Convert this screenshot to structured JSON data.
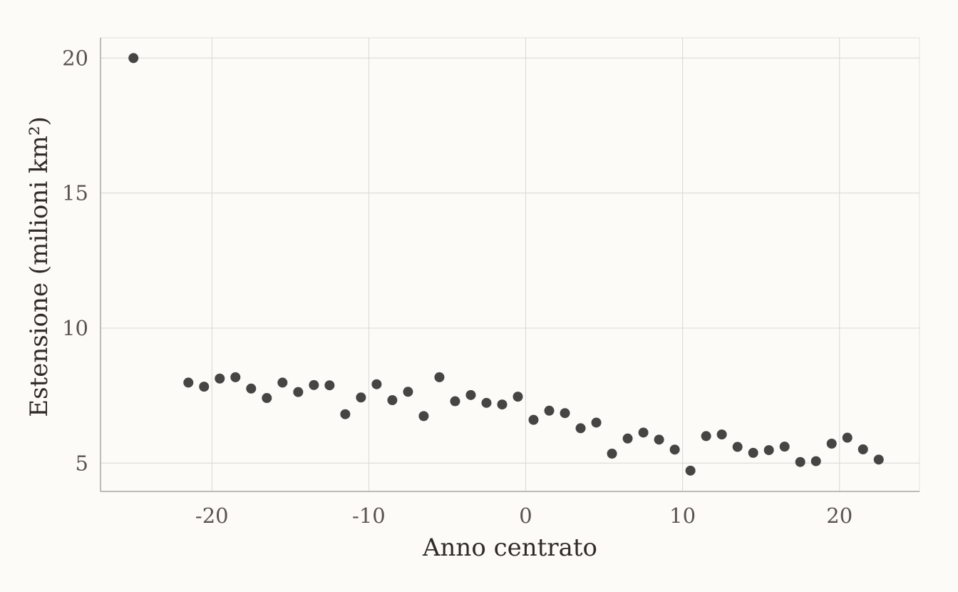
{
  "chart_data": {
    "type": "scatter",
    "title": "",
    "xlabel": "Anno centrato",
    "ylabel": "Estensione (milioni km²)",
    "xlim": [
      -27.1,
      25.1
    ],
    "ylim": [
      3.95,
      20.75
    ],
    "x_ticks": [
      -20,
      -10,
      0,
      10,
      20
    ],
    "x_tick_labels": [
      "-20",
      "-10",
      "0",
      "10",
      "20"
    ],
    "y_ticks": [
      5,
      10,
      15,
      20
    ],
    "y_tick_labels": [
      "5",
      "10",
      "15",
      "20"
    ],
    "grid": true,
    "legend": "none",
    "point_color": "#474544",
    "grid_color": "#d9d8d4",
    "background": "#fcfbf7",
    "points": [
      {
        "x": -25,
        "y": 20.0
      },
      {
        "x": -21.5,
        "y": 7.98
      },
      {
        "x": -20.5,
        "y": 7.83
      },
      {
        "x": -19.5,
        "y": 8.13
      },
      {
        "x": -18.5,
        "y": 8.18
      },
      {
        "x": -17.5,
        "y": 7.76
      },
      {
        "x": -16.5,
        "y": 7.41
      },
      {
        "x": -15.5,
        "y": 7.98
      },
      {
        "x": -14.5,
        "y": 7.63
      },
      {
        "x": -13.5,
        "y": 7.89
      },
      {
        "x": -12.5,
        "y": 7.88
      },
      {
        "x": -11.5,
        "y": 6.81
      },
      {
        "x": -10.5,
        "y": 7.43
      },
      {
        "x": -9.5,
        "y": 7.92
      },
      {
        "x": -8.5,
        "y": 7.33
      },
      {
        "x": -7.5,
        "y": 7.64
      },
      {
        "x": -6.5,
        "y": 6.74
      },
      {
        "x": -5.5,
        "y": 8.18
      },
      {
        "x": -4.5,
        "y": 7.29
      },
      {
        "x": -3.5,
        "y": 7.52
      },
      {
        "x": -2.5,
        "y": 7.23
      },
      {
        "x": -1.5,
        "y": 7.17
      },
      {
        "x": -0.5,
        "y": 7.46
      },
      {
        "x": 0.5,
        "y": 6.6
      },
      {
        "x": 1.5,
        "y": 6.94
      },
      {
        "x": 2.5,
        "y": 6.85
      },
      {
        "x": 3.5,
        "y": 6.29
      },
      {
        "x": 4.5,
        "y": 6.5
      },
      {
        "x": 5.5,
        "y": 5.35
      },
      {
        "x": 6.5,
        "y": 5.91
      },
      {
        "x": 7.5,
        "y": 6.13
      },
      {
        "x": 8.5,
        "y": 5.87
      },
      {
        "x": 9.5,
        "y": 5.5
      },
      {
        "x": 10.5,
        "y": 4.72
      },
      {
        "x": 11.5,
        "y": 6.0
      },
      {
        "x": 12.5,
        "y": 6.06
      },
      {
        "x": 13.5,
        "y": 5.6
      },
      {
        "x": 14.5,
        "y": 5.38
      },
      {
        "x": 15.5,
        "y": 5.48
      },
      {
        "x": 16.5,
        "y": 5.61
      },
      {
        "x": 17.5,
        "y": 5.04
      },
      {
        "x": 18.5,
        "y": 5.07
      },
      {
        "x": 19.5,
        "y": 5.72
      },
      {
        "x": 20.5,
        "y": 5.94
      },
      {
        "x": 21.5,
        "y": 5.51
      },
      {
        "x": 22.5,
        "y": 5.13
      }
    ]
  }
}
